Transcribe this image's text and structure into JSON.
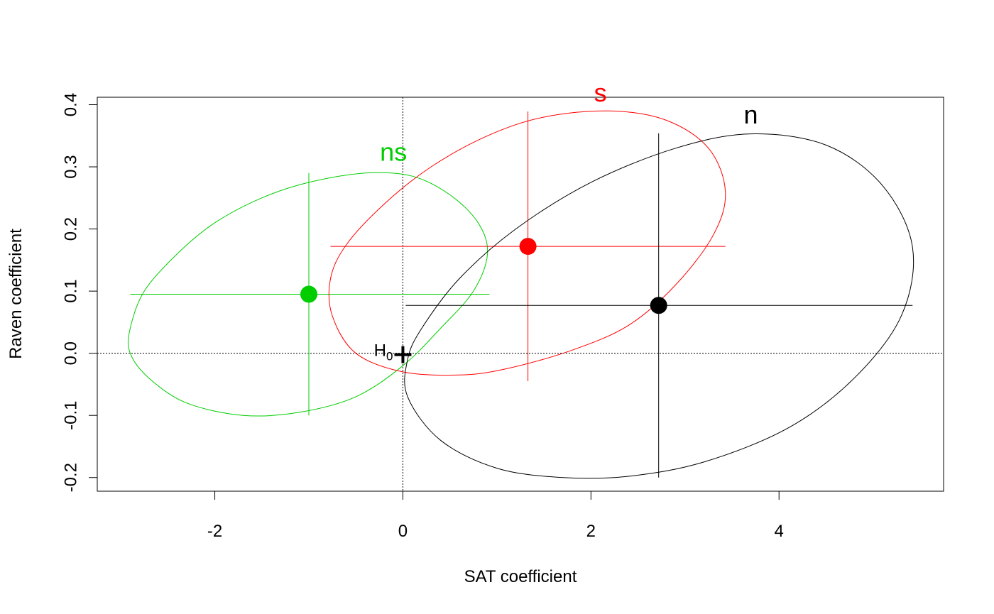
{
  "chart_data": {
    "type": "scatter",
    "xlabel": "SAT coefficient",
    "ylabel": "Raven coefficient",
    "xlim": [
      -3.25,
      5.75
    ],
    "ylim": [
      -0.222,
      0.412
    ],
    "x_ticks": [
      -2,
      0,
      2,
      4
    ],
    "y_ticks": [
      -0.2,
      -0.1,
      0.0,
      0.1,
      0.2,
      0.3,
      0.4
    ],
    "x_tick_labels": [
      "-2",
      "0",
      "2",
      "4"
    ],
    "y_tick_labels": [
      "-0.2",
      "-0.1",
      "0.0",
      "0.1",
      "0.2",
      "0.3",
      "0.4"
    ],
    "reference_lines": {
      "x": 0,
      "y": 0
    },
    "null_point": {
      "label": "H",
      "label_sub": "0",
      "x": 0,
      "y": 0
    },
    "groups": [
      {
        "name": "ns",
        "color": "#00CD00",
        "center": [
          -1.0,
          0.095
        ],
        "x_range": [
          -2.9,
          0.92
        ],
        "y_range": [
          -0.1,
          0.29
        ],
        "label_pos": [
          -0.1,
          0.31
        ],
        "ellipse": [
          [
            -2.9,
            0.04
          ],
          [
            -2.75,
            0.1
          ],
          [
            -2.4,
            0.16
          ],
          [
            -2.0,
            0.21
          ],
          [
            -1.5,
            0.25
          ],
          [
            -1.0,
            0.275
          ],
          [
            -0.4,
            0.29
          ],
          [
            0.1,
            0.285
          ],
          [
            0.5,
            0.255
          ],
          [
            0.8,
            0.21
          ],
          [
            0.9,
            0.16
          ],
          [
            0.75,
            0.1
          ],
          [
            0.4,
            0.04
          ],
          [
            0.0,
            -0.02
          ],
          [
            -0.5,
            -0.07
          ],
          [
            -1.1,
            -0.095
          ],
          [
            -1.7,
            -0.1
          ],
          [
            -2.3,
            -0.08
          ],
          [
            -2.7,
            -0.04
          ],
          [
            -2.9,
            0.0
          ]
        ]
      },
      {
        "name": "s",
        "color": "#FF0000",
        "center": [
          1.33,
          0.172
        ],
        "x_range": [
          -0.77,
          3.43
        ],
        "y_range": [
          -0.045,
          0.389
        ],
        "label_pos": [
          2.1,
          0.405
        ],
        "ellipse": [
          [
            -0.77,
            0.12
          ],
          [
            -0.6,
            0.175
          ],
          [
            -0.2,
            0.24
          ],
          [
            0.3,
            0.3
          ],
          [
            0.9,
            0.35
          ],
          [
            1.5,
            0.38
          ],
          [
            2.2,
            0.39
          ],
          [
            2.8,
            0.375
          ],
          [
            3.25,
            0.33
          ],
          [
            3.43,
            0.26
          ],
          [
            3.3,
            0.19
          ],
          [
            2.9,
            0.11
          ],
          [
            2.4,
            0.045
          ],
          [
            1.8,
            0.005
          ],
          [
            1.1,
            -0.025
          ],
          [
            0.6,
            -0.035
          ],
          [
            0.0,
            -0.03
          ],
          [
            -0.5,
            0.0
          ],
          [
            -0.75,
            0.06
          ]
        ]
      },
      {
        "name": "n",
        "color": "#000000",
        "center": [
          2.72,
          0.077
        ],
        "x_range": [
          0.03,
          5.42
        ],
        "y_range": [
          -0.2,
          0.354
        ],
        "label_pos": [
          3.7,
          0.37
        ],
        "ellipse": [
          [
            0.2,
            0.04
          ],
          [
            0.6,
            0.12
          ],
          [
            1.2,
            0.2
          ],
          [
            2.0,
            0.275
          ],
          [
            2.9,
            0.33
          ],
          [
            3.7,
            0.353
          ],
          [
            4.5,
            0.335
          ],
          [
            5.1,
            0.27
          ],
          [
            5.42,
            0.17
          ],
          [
            5.3,
            0.06
          ],
          [
            4.8,
            -0.04
          ],
          [
            4.1,
            -0.12
          ],
          [
            3.2,
            -0.175
          ],
          [
            2.4,
            -0.198
          ],
          [
            1.7,
            -0.2
          ],
          [
            1.0,
            -0.185
          ],
          [
            0.4,
            -0.14
          ],
          [
            0.05,
            -0.07
          ],
          [
            0.05,
            -0.01
          ]
        ]
      }
    ]
  }
}
